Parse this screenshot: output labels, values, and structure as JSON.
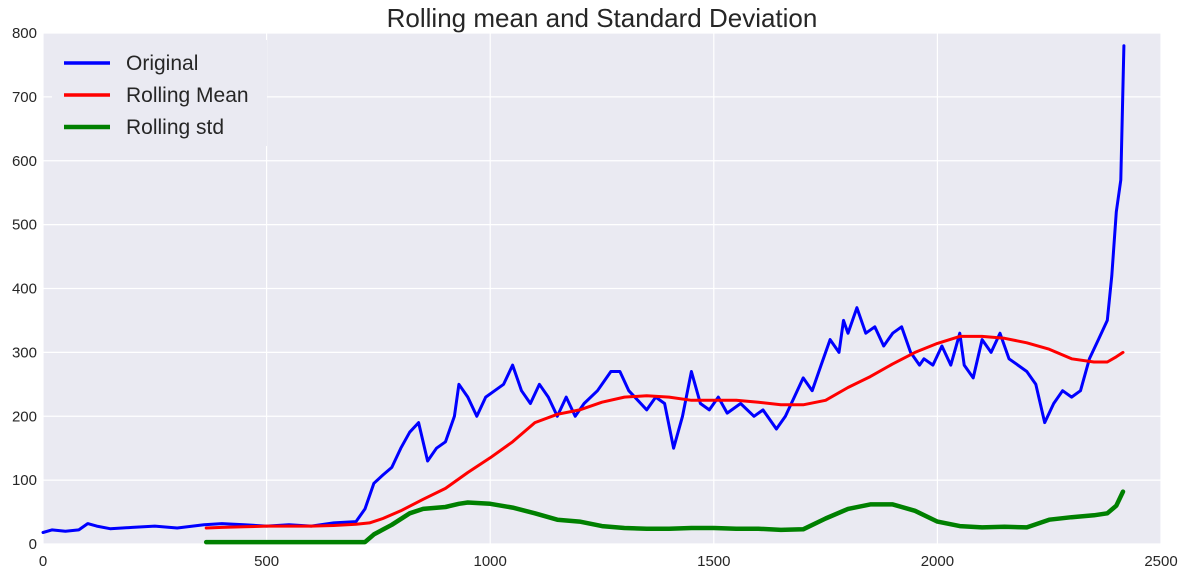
{
  "chart_data": {
    "type": "line",
    "title": "Rolling mean and Standard Deviation",
    "xlabel": "",
    "ylabel": "",
    "xlim": [
      0,
      2500
    ],
    "ylim": [
      0,
      800
    ],
    "xticks": [
      0,
      500,
      1000,
      1500,
      2000,
      2500
    ],
    "yticks": [
      0,
      100,
      200,
      300,
      400,
      500,
      600,
      700,
      800
    ],
    "grid": true,
    "background": "#eaeaf2",
    "legend_position": "top-left",
    "series": [
      {
        "name": "Original",
        "color": "#0000ff",
        "points": [
          [
            0,
            18
          ],
          [
            20,
            22
          ],
          [
            50,
            20
          ],
          [
            80,
            22
          ],
          [
            100,
            32
          ],
          [
            120,
            28
          ],
          [
            150,
            24
          ],
          [
            200,
            26
          ],
          [
            250,
            28
          ],
          [
            300,
            25
          ],
          [
            360,
            30
          ],
          [
            400,
            32
          ],
          [
            450,
            30
          ],
          [
            500,
            28
          ],
          [
            550,
            30
          ],
          [
            600,
            28
          ],
          [
            650,
            33
          ],
          [
            700,
            35
          ],
          [
            720,
            55
          ],
          [
            740,
            95
          ],
          [
            760,
            108
          ],
          [
            780,
            120
          ],
          [
            800,
            150
          ],
          [
            820,
            175
          ],
          [
            840,
            190
          ],
          [
            860,
            130
          ],
          [
            880,
            150
          ],
          [
            900,
            160
          ],
          [
            920,
            200
          ],
          [
            930,
            250
          ],
          [
            950,
            230
          ],
          [
            970,
            200
          ],
          [
            990,
            230
          ],
          [
            1010,
            240
          ],
          [
            1030,
            250
          ],
          [
            1050,
            280
          ],
          [
            1070,
            240
          ],
          [
            1090,
            220
          ],
          [
            1110,
            250
          ],
          [
            1130,
            230
          ],
          [
            1150,
            200
          ],
          [
            1170,
            230
          ],
          [
            1190,
            200
          ],
          [
            1210,
            220
          ],
          [
            1240,
            240
          ],
          [
            1270,
            270
          ],
          [
            1290,
            270
          ],
          [
            1310,
            240
          ],
          [
            1330,
            225
          ],
          [
            1350,
            210
          ],
          [
            1370,
            230
          ],
          [
            1390,
            220
          ],
          [
            1410,
            150
          ],
          [
            1430,
            200
          ],
          [
            1450,
            270
          ],
          [
            1470,
            220
          ],
          [
            1490,
            210
          ],
          [
            1510,
            230
          ],
          [
            1530,
            205
          ],
          [
            1560,
            220
          ],
          [
            1590,
            200
          ],
          [
            1610,
            210
          ],
          [
            1640,
            180
          ],
          [
            1660,
            200
          ],
          [
            1680,
            230
          ],
          [
            1700,
            260
          ],
          [
            1720,
            240
          ],
          [
            1740,
            280
          ],
          [
            1760,
            320
          ],
          [
            1780,
            300
          ],
          [
            1790,
            350
          ],
          [
            1800,
            330
          ],
          [
            1820,
            370
          ],
          [
            1840,
            330
          ],
          [
            1860,
            340
          ],
          [
            1880,
            310
          ],
          [
            1900,
            330
          ],
          [
            1920,
            340
          ],
          [
            1940,
            300
          ],
          [
            1960,
            280
          ],
          [
            1970,
            290
          ],
          [
            1990,
            280
          ],
          [
            2010,
            310
          ],
          [
            2030,
            280
          ],
          [
            2050,
            330
          ],
          [
            2060,
            280
          ],
          [
            2080,
            260
          ],
          [
            2100,
            320
          ],
          [
            2120,
            300
          ],
          [
            2140,
            330
          ],
          [
            2160,
            290
          ],
          [
            2180,
            280
          ],
          [
            2200,
            270
          ],
          [
            2220,
            250
          ],
          [
            2240,
            190
          ],
          [
            2260,
            220
          ],
          [
            2280,
            240
          ],
          [
            2300,
            230
          ],
          [
            2320,
            240
          ],
          [
            2340,
            290
          ],
          [
            2360,
            320
          ],
          [
            2380,
            350
          ],
          [
            2390,
            420
          ],
          [
            2400,
            520
          ],
          [
            2410,
            570
          ],
          [
            2417,
            780
          ]
        ]
      },
      {
        "name": "Rolling Mean",
        "color": "#ff0000",
        "points": [
          [
            365,
            25
          ],
          [
            400,
            26
          ],
          [
            450,
            27
          ],
          [
            500,
            28
          ],
          [
            550,
            28
          ],
          [
            600,
            28
          ],
          [
            650,
            29
          ],
          [
            700,
            31
          ],
          [
            730,
            33
          ],
          [
            760,
            40
          ],
          [
            800,
            52
          ],
          [
            850,
            70
          ],
          [
            900,
            87
          ],
          [
            950,
            112
          ],
          [
            1000,
            135
          ],
          [
            1050,
            160
          ],
          [
            1100,
            190
          ],
          [
            1150,
            203
          ],
          [
            1200,
            210
          ],
          [
            1250,
            222
          ],
          [
            1300,
            230
          ],
          [
            1350,
            232
          ],
          [
            1400,
            230
          ],
          [
            1450,
            225
          ],
          [
            1500,
            225
          ],
          [
            1550,
            225
          ],
          [
            1600,
            222
          ],
          [
            1650,
            218
          ],
          [
            1700,
            218
          ],
          [
            1750,
            225
          ],
          [
            1800,
            245
          ],
          [
            1850,
            262
          ],
          [
            1900,
            282
          ],
          [
            1950,
            300
          ],
          [
            2000,
            314
          ],
          [
            2050,
            325
          ],
          [
            2100,
            325
          ],
          [
            2150,
            322
          ],
          [
            2200,
            315
          ],
          [
            2250,
            305
          ],
          [
            2300,
            290
          ],
          [
            2350,
            285
          ],
          [
            2380,
            285
          ],
          [
            2400,
            293
          ],
          [
            2415,
            300
          ]
        ]
      },
      {
        "name": "Rolling std",
        "color": "#008000",
        "points": [
          [
            365,
            3
          ],
          [
            400,
            3
          ],
          [
            500,
            3
          ],
          [
            600,
            3
          ],
          [
            700,
            3
          ],
          [
            720,
            3
          ],
          [
            740,
            15
          ],
          [
            780,
            30
          ],
          [
            820,
            48
          ],
          [
            850,
            55
          ],
          [
            900,
            58
          ],
          [
            930,
            63
          ],
          [
            950,
            65
          ],
          [
            1000,
            63
          ],
          [
            1050,
            57
          ],
          [
            1100,
            48
          ],
          [
            1150,
            38
          ],
          [
            1200,
            35
          ],
          [
            1250,
            28
          ],
          [
            1300,
            25
          ],
          [
            1350,
            24
          ],
          [
            1400,
            24
          ],
          [
            1450,
            25
          ],
          [
            1500,
            25
          ],
          [
            1550,
            24
          ],
          [
            1600,
            24
          ],
          [
            1650,
            22
          ],
          [
            1700,
            23
          ],
          [
            1750,
            40
          ],
          [
            1800,
            55
          ],
          [
            1850,
            62
          ],
          [
            1900,
            62
          ],
          [
            1950,
            52
          ],
          [
            2000,
            35
          ],
          [
            2050,
            28
          ],
          [
            2100,
            26
          ],
          [
            2150,
            27
          ],
          [
            2200,
            26
          ],
          [
            2250,
            38
          ],
          [
            2300,
            42
          ],
          [
            2350,
            45
          ],
          [
            2380,
            48
          ],
          [
            2400,
            60
          ],
          [
            2415,
            82
          ]
        ]
      }
    ]
  }
}
